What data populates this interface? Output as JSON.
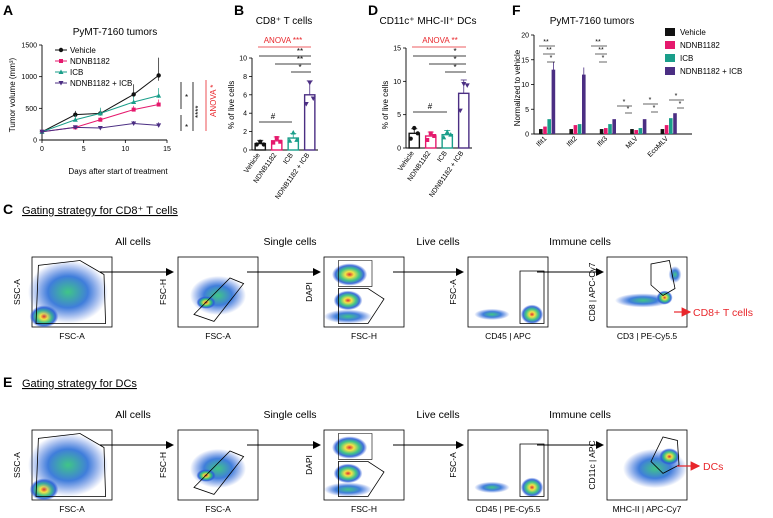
{
  "colors": {
    "vehicle": "#111111",
    "ndnb1182": "#e5196d",
    "icb": "#1a9e8a",
    "combo": "#4b2e83",
    "anova": "#e8262b",
    "arrow_red": "#e8262b"
  },
  "panel_labels": {
    "a": "A",
    "b": "B",
    "c": "C",
    "d": "D",
    "e": "E",
    "f": "F"
  },
  "panel_a": {
    "title": "PyMT-7160 tumors",
    "ylabel": "Tumor volume (mm³)",
    "xlabel": "Days after start of treatment",
    "legend": [
      "Vehicle",
      "NDNB1182",
      "ICB",
      "NDNB1182 + ICB"
    ],
    "sig_top": "*",
    "sig_mid": "****",
    "sig_bottom": "*",
    "anova": "ANOVA *"
  },
  "panel_b": {
    "title": "CD8⁺ T cells",
    "ylabel": "% of live cells",
    "anova": "ANOVA ***",
    "hash": "#",
    "sig1": "**",
    "sig2": "**",
    "sig3": "*"
  },
  "panel_d": {
    "title": "CD11c⁺ MHC-II⁺ DCs",
    "ylabel": "% of live cells",
    "anova": "ANOVA **",
    "hash": "#",
    "sig1": "*",
    "sig2": "*",
    "sig3": "*"
  },
  "panel_f": {
    "title": "PyMT-7160 tumors",
    "ylabel": "Normalized to vehicle",
    "legend": [
      "Vehicle",
      "NDNB1182",
      "ICB",
      "NDNB1182 + ICB"
    ],
    "sig_ifit1": [
      "**",
      "**",
      "*"
    ],
    "sig_ifit2": [
      "**",
      "**",
      "*"
    ],
    "sig_ifit3": [
      "*",
      "*"
    ],
    "sig_mlv": [
      "*",
      "*"
    ],
    "sig_ecomlv": [
      "*",
      "*"
    ]
  },
  "chart_data": [
    {
      "id": "A",
      "type": "line",
      "title": "PyMT-7160 tumors",
      "xlabel": "Days after start of treatment",
      "ylabel": "Tumor volume (mm³)",
      "x": [
        0,
        4,
        7,
        11,
        14
      ],
      "xlim": [
        0,
        15
      ],
      "ylim": [
        0,
        1500
      ],
      "xticks": [
        "0",
        "5",
        "10",
        "15"
      ],
      "yticks": [
        "0",
        "500",
        "1000",
        "1500"
      ],
      "series": [
        {
          "name": "Vehicle",
          "values": [
            130,
            400,
            420,
            720,
            1020
          ]
        },
        {
          "name": "NDNB1182",
          "values": [
            130,
            200,
            320,
            480,
            560
          ]
        },
        {
          "name": "ICB",
          "values": [
            130,
            320,
            420,
            600,
            700
          ]
        },
        {
          "name": "NDNB1182 + ICB",
          "values": [
            130,
            200,
            190,
            260,
            230
          ]
        }
      ]
    },
    {
      "id": "B",
      "type": "bar",
      "title": "CD8⁺ T cells",
      "ylabel": "% of live cells",
      "categories": [
        "Vehicle",
        "NDNB1182",
        "ICB",
        "NDNB1182 + ICB"
      ],
      "values": [
        0.7,
        1.0,
        1.3,
        6.0
      ],
      "ylim": [
        0,
        10
      ],
      "yticks": [
        "0",
        "2",
        "4",
        "6",
        "8",
        "10"
      ]
    },
    {
      "id": "D",
      "type": "bar",
      "title": "CD11c⁺ MHC-II⁺ DCs",
      "ylabel": "% of live cells",
      "categories": [
        "Vehicle",
        "NDNB1182",
        "ICB",
        "NDNB1182 + ICB"
      ],
      "values": [
        2.2,
        1.8,
        2.0,
        8.2
      ],
      "ylim": [
        0,
        15
      ],
      "yticks": [
        "0",
        "5",
        "10",
        "15"
      ]
    },
    {
      "id": "F",
      "type": "bar",
      "title": "PyMT-7160 tumors",
      "ylabel": "Normalized to vehicle",
      "categories": [
        "Ifit1",
        "Ifit2",
        "Ifit3",
        "MLV",
        "EcoMLV"
      ],
      "ylim": [
        0,
        20
      ],
      "yticks": [
        "0",
        "5",
        "10",
        "15",
        "20"
      ],
      "series": [
        {
          "name": "Vehicle",
          "values": [
            1,
            1,
            1,
            1,
            1
          ]
        },
        {
          "name": "NDNB1182",
          "values": [
            1.5,
            1.8,
            1.2,
            0.8,
            1.8
          ]
        },
        {
          "name": "ICB",
          "values": [
            3.0,
            2.0,
            2.0,
            1.2,
            3.2
          ]
        },
        {
          "name": "NDNB1182 + ICB",
          "values": [
            13,
            12,
            3.0,
            3.0,
            4.2
          ]
        }
      ]
    }
  ],
  "panel_c": {
    "title": "Gating strategy for CD8⁺ T cells",
    "stage_labels": [
      "All cells",
      "Single cells",
      "Live cells",
      "Immune cells"
    ],
    "plots": [
      {
        "x": "FSC-A",
        "y": "SSC-A"
      },
      {
        "x": "FSC-A",
        "y": "FSC-H"
      },
      {
        "x": "FSC-H",
        "y": "DAPI"
      },
      {
        "x": "CD45 | APC",
        "y": "FSC-A"
      },
      {
        "x": "CD3 | PE-Cy5.5",
        "y": "CD8 | APC-Cy7"
      }
    ],
    "result": "CD8+ T cells"
  },
  "panel_e": {
    "title": "Gating strategy for DCs",
    "stage_labels": [
      "All cells",
      "Single cells",
      "Live cells",
      "Immune cells"
    ],
    "plots": [
      {
        "x": "FSC-A",
        "y": "SSC-A"
      },
      {
        "x": "FSC-A",
        "y": "FSC-H"
      },
      {
        "x": "FSC-H",
        "y": "DAPI"
      },
      {
        "x": "CD45 | PE-Cy5.5",
        "y": "FSC-A"
      },
      {
        "x": "MHC-II | APC-Cy7",
        "y": "CD11c | APC"
      }
    ],
    "result": "DCs"
  }
}
